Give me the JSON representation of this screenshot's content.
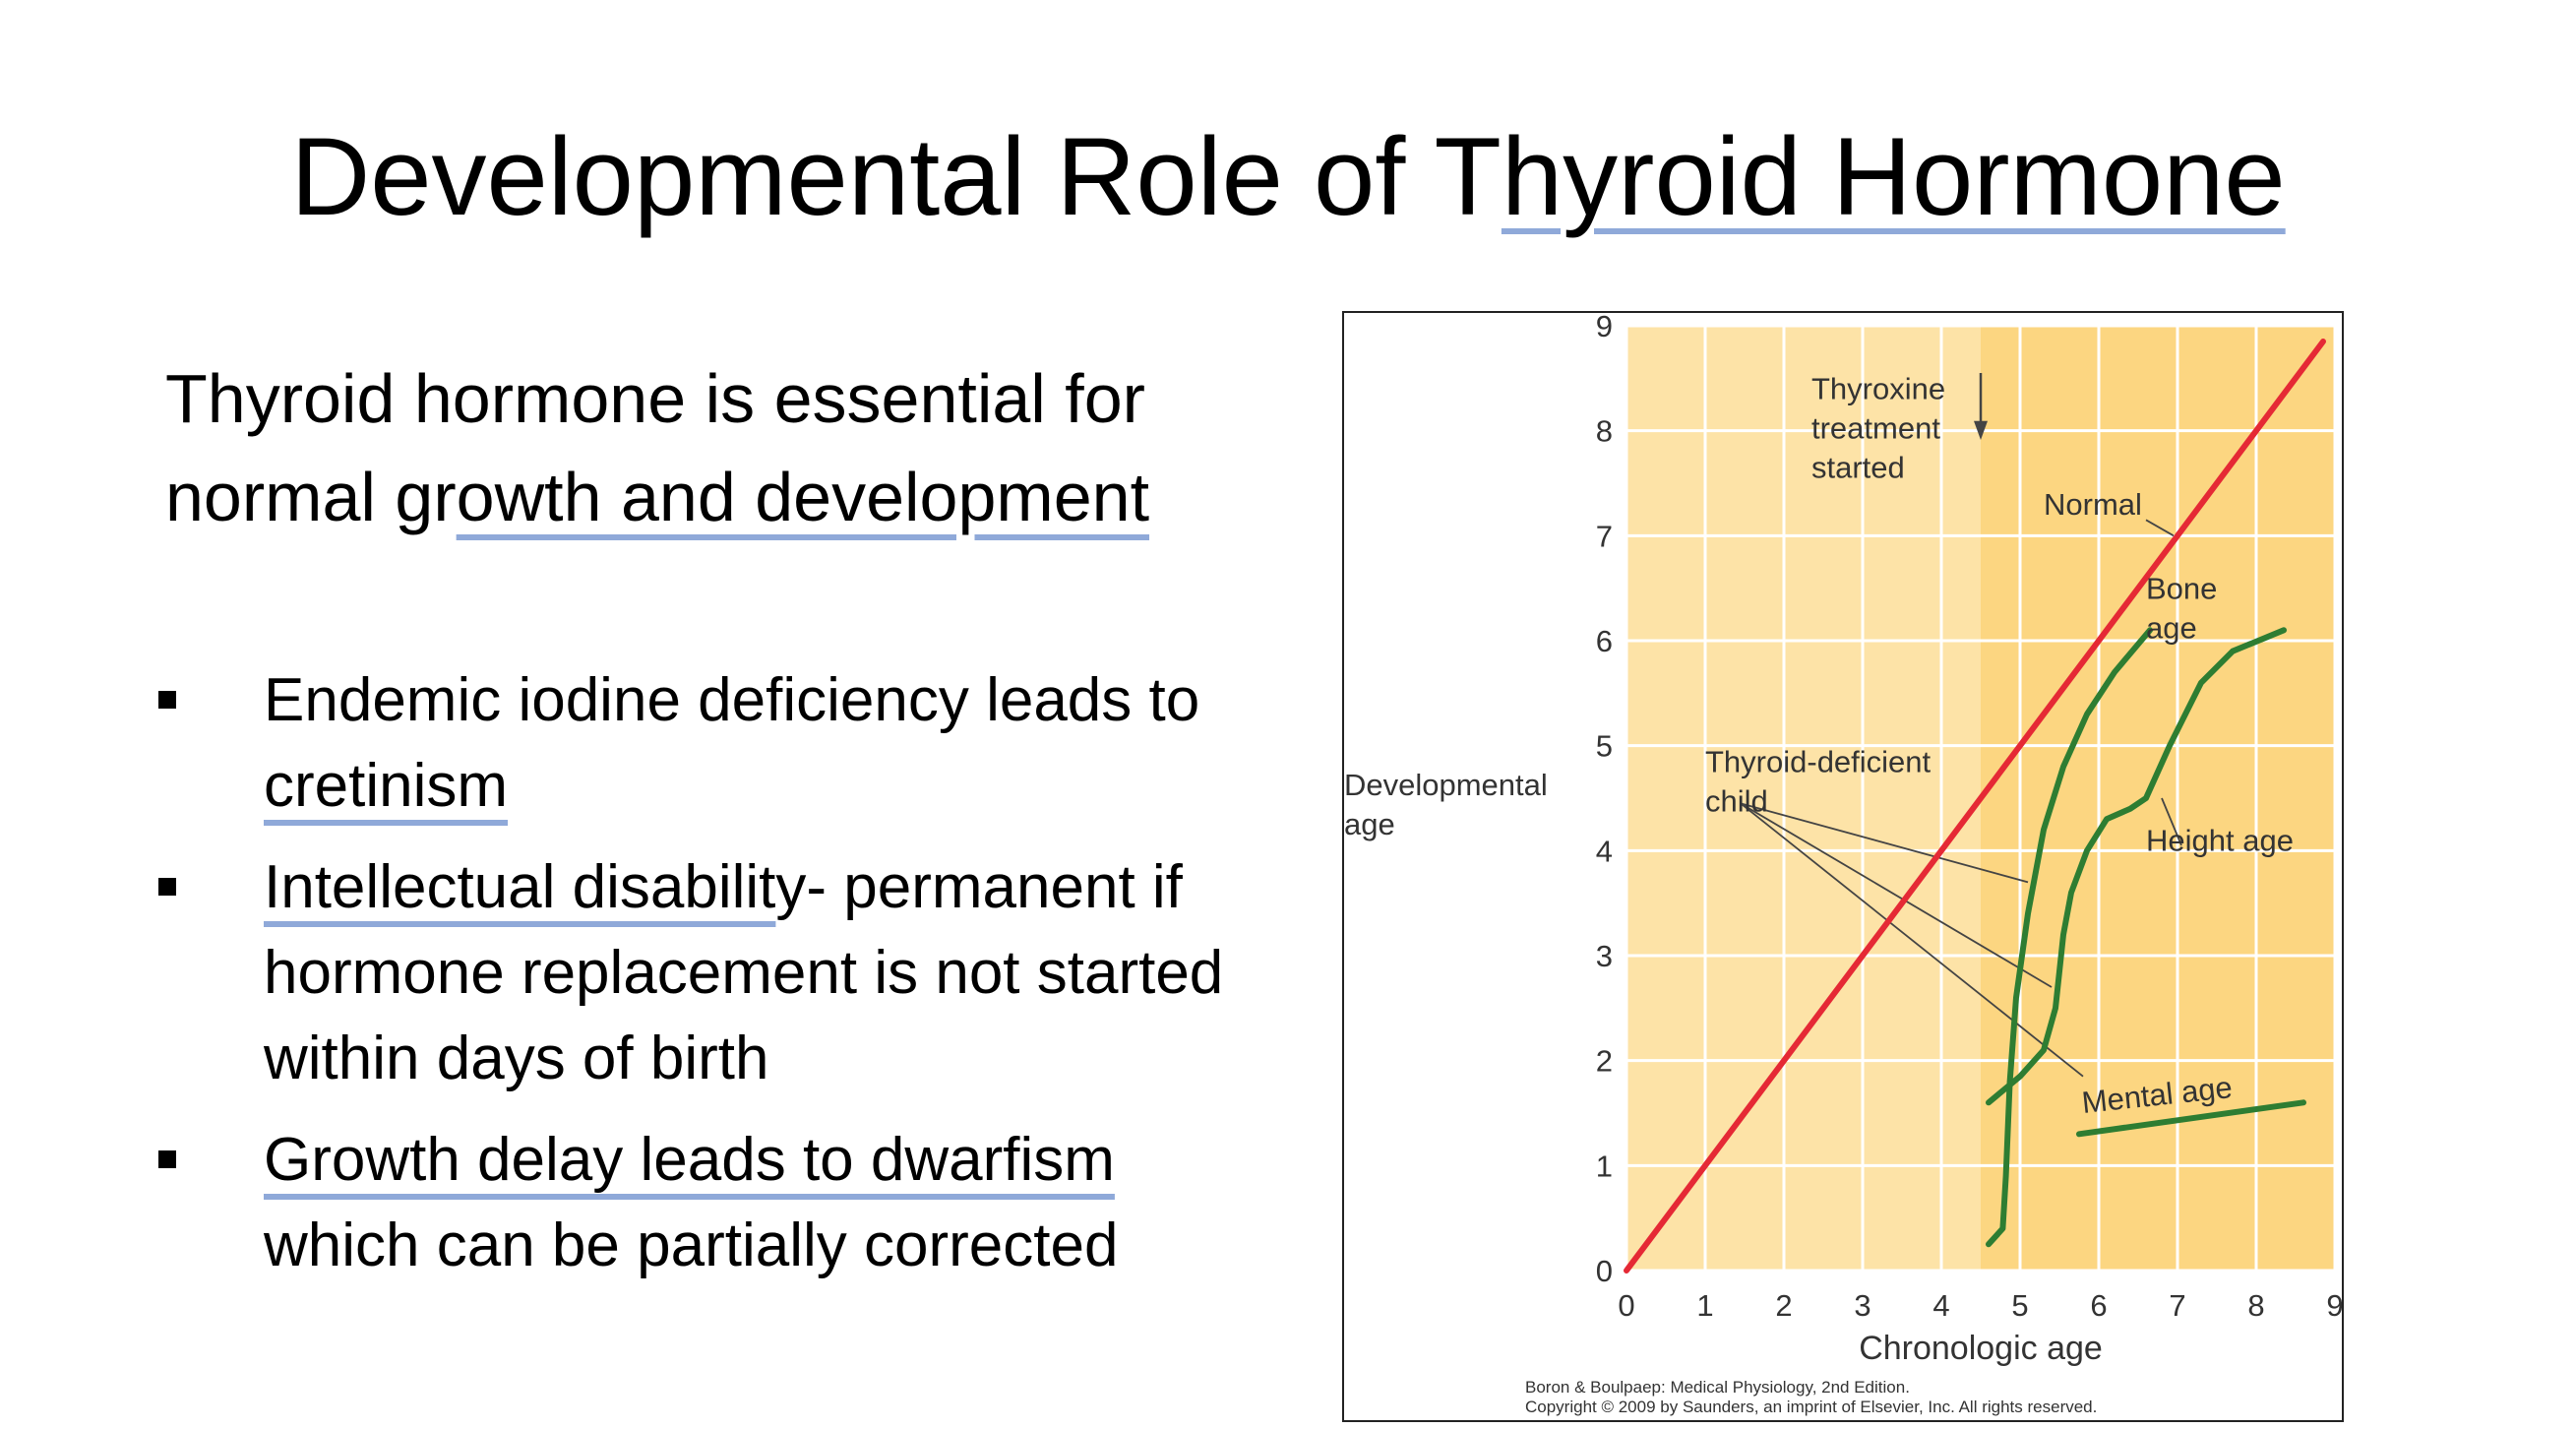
{
  "slide": {
    "title_part1": "Developmental Role of T",
    "title_part2": "hyroid Hormone",
    "intro_part1": "Thyroid hormone is essential for normal gr",
    "intro_part2": "owth and development",
    "bullets": [
      {
        "pre": "Endemic iodine deficiency leads to ",
        "underlined": "cretinism",
        "post": ""
      },
      {
        "pre": "",
        "underlined": "Intellectual disabilit",
        "post": "y- permanent if hormone replacement is not started within days of birth"
      },
      {
        "pre": "",
        "underlined": "Growth delay leads to dwarfism",
        "post": " which can be partially corrected"
      }
    ]
  },
  "figure": {
    "credit_line1": "Boron & Boulpaep: Medical Physiology, 2nd Edition.",
    "credit_line2": "Copyright © 2009 by Saunders, an imprint of Elsevier, Inc. All rights reserved."
  },
  "chart_data": {
    "type": "line",
    "xlabel": "Chronologic age",
    "ylabel": "Developmental age",
    "xlim": [
      0,
      9
    ],
    "ylim": [
      0,
      9
    ],
    "x_ticks": [
      "0",
      "1",
      "2",
      "3",
      "4",
      "5",
      "6",
      "7",
      "8",
      "9"
    ],
    "y_ticks": [
      "0",
      "1",
      "2",
      "3",
      "4",
      "5",
      "6",
      "7",
      "8",
      "9"
    ],
    "grid": true,
    "treatment_start_x": 4.5,
    "colors": {
      "background_before": "#fde3a7",
      "background_after": "#fcd681",
      "grid": "#ffffff",
      "normal": "#e52935",
      "deficient": "#2e7d32",
      "pointer": "#444444"
    },
    "series": [
      {
        "name": "Normal",
        "color": "#e52935",
        "points": [
          [
            0,
            0
          ],
          [
            8.85,
            8.85
          ]
        ]
      },
      {
        "name": "Bone age",
        "color": "#2e7d32",
        "points": [
          [
            4.6,
            0.25
          ],
          [
            4.78,
            0.4
          ],
          [
            4.82,
            0.9
          ],
          [
            4.87,
            1.8
          ],
          [
            4.95,
            2.6
          ],
          [
            5.1,
            3.4
          ],
          [
            5.3,
            4.2
          ],
          [
            5.55,
            4.8
          ],
          [
            5.85,
            5.3
          ],
          [
            6.2,
            5.7
          ],
          [
            6.65,
            6.1
          ]
        ]
      },
      {
        "name": "Height age",
        "color": "#2e7d32",
        "points": [
          [
            4.6,
            1.6
          ],
          [
            5.0,
            1.85
          ],
          [
            5.3,
            2.1
          ],
          [
            5.45,
            2.5
          ],
          [
            5.55,
            3.2
          ],
          [
            5.65,
            3.6
          ],
          [
            5.85,
            4.0
          ],
          [
            6.1,
            4.3
          ],
          [
            6.4,
            4.4
          ],
          [
            6.6,
            4.5
          ],
          [
            6.9,
            5.0
          ],
          [
            7.3,
            5.6
          ],
          [
            7.7,
            5.9
          ],
          [
            8.35,
            6.1
          ]
        ]
      },
      {
        "name": "Mental age",
        "color": "#2e7d32",
        "points": [
          [
            5.75,
            1.3
          ],
          [
            8.6,
            1.6
          ]
        ]
      }
    ],
    "annotations": [
      {
        "text_lines": [
          "Thyroxine",
          "treatment",
          "started"
        ],
        "x": 2.35,
        "y": 8.3
      },
      {
        "text_lines": [
          "Normal"
        ],
        "x": 5.3,
        "y": 7.2
      },
      {
        "text_lines": [
          "Bone",
          "age"
        ],
        "x": 6.6,
        "y": 6.4
      },
      {
        "text_lines": [
          "Height age"
        ],
        "x": 6.6,
        "y": 4.0
      },
      {
        "text_lines": [
          "Thyroid-deficient",
          "child"
        ],
        "x": 1.0,
        "y": 4.75
      },
      {
        "text_lines": [
          "Mental age"
        ],
        "x": 5.8,
        "y": 1.5
      }
    ],
    "pointer_targets": [
      [
        5.1,
        3.7
      ],
      [
        5.4,
        2.7
      ],
      [
        5.8,
        1.85
      ]
    ]
  }
}
